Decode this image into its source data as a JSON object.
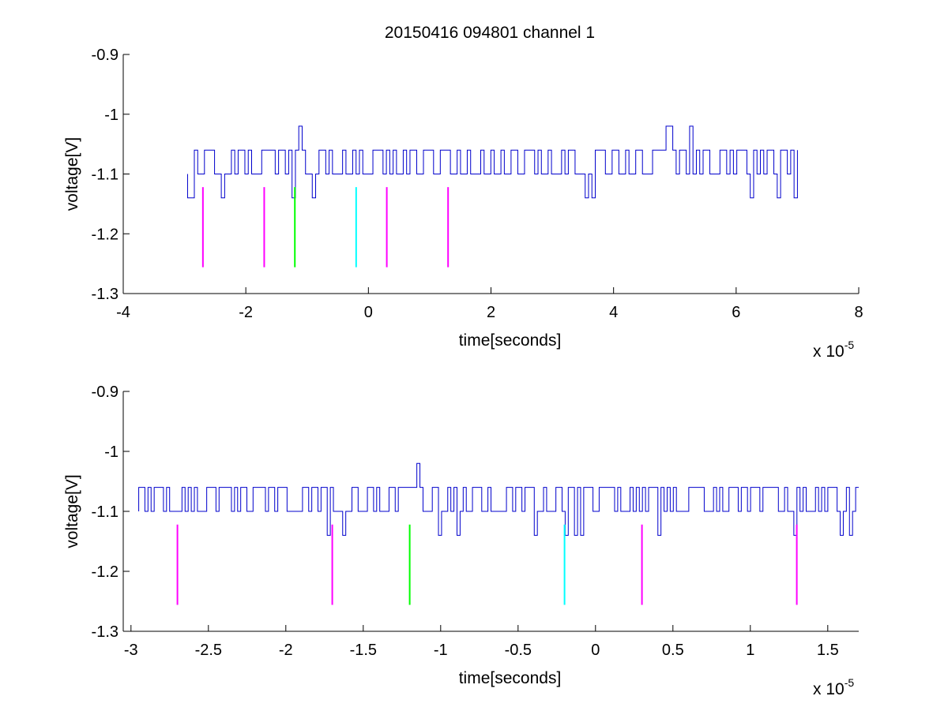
{
  "figure": {
    "title": "20150416 094801 channel 1"
  },
  "chart_data": [
    {
      "type": "line",
      "title": "20150416 094801 channel 1",
      "xlabel": "time[seconds]",
      "ylabel": "voltage[V]",
      "x_multiplier_label": "x 10",
      "x_multiplier_exponent": "-5",
      "x_scale": 1e-05,
      "xlim": [
        -4,
        8
      ],
      "ylim": [
        -1.3,
        -0.9
      ],
      "xticks": [
        -4,
        -2,
        0,
        2,
        4,
        6,
        8
      ],
      "xtick_labels": [
        "-4",
        "-2",
        "0",
        "2",
        "4",
        "6",
        "8"
      ],
      "yticks": [
        -1.3,
        -1.2,
        -1.1,
        -1.0,
        -0.9
      ],
      "ytick_labels": [
        "-1.3",
        "-1.2",
        "-1.1",
        "-1",
        "-0.9"
      ],
      "grid": false,
      "signal": {
        "color": "#0000cc",
        "x_range": [
          -2.95,
          7.0
        ],
        "levels": [
          -1.06,
          -1.1,
          -1.14
        ],
        "spikes": [
          {
            "x": -1.15,
            "y": -1.02
          },
          {
            "x": 4.88,
            "y": -1.02
          },
          {
            "x": 5.25,
            "y": -1.02
          }
        ]
      },
      "markers": [
        {
          "x": -2.7,
          "color": "#ff00ff",
          "y_top": -1.122,
          "y_bottom": -1.256
        },
        {
          "x": -1.7,
          "color": "#ff00ff",
          "y_top": -1.122,
          "y_bottom": -1.256
        },
        {
          "x": -1.2,
          "color": "#00ff00",
          "y_top": -1.122,
          "y_bottom": -1.256
        },
        {
          "x": -0.2,
          "color": "#00ffff",
          "y_top": -1.122,
          "y_bottom": -1.256
        },
        {
          "x": 0.3,
          "color": "#ff00ff",
          "y_top": -1.122,
          "y_bottom": -1.256
        },
        {
          "x": 1.3,
          "color": "#ff00ff",
          "y_top": -1.122,
          "y_bottom": -1.256
        }
      ]
    },
    {
      "type": "line",
      "xlabel": "time[seconds]",
      "ylabel": "voltage[V]",
      "x_multiplier_label": "x 10",
      "x_multiplier_exponent": "-5",
      "x_scale": 1e-05,
      "xlim": [
        -3.05,
        1.7
      ],
      "ylim": [
        -1.3,
        -0.9
      ],
      "xticks": [
        -3,
        -2.5,
        -2,
        -1.5,
        -1,
        -0.5,
        0,
        0.5,
        1,
        1.5
      ],
      "xtick_labels": [
        "-3",
        "-2.5",
        "-2",
        "-1.5",
        "-1",
        "-0.5",
        "0",
        "0.5",
        "1",
        "1.5"
      ],
      "yticks": [
        -1.3,
        -1.2,
        -1.1,
        -1.0,
        -0.9
      ],
      "ytick_labels": [
        "-1.3",
        "-1.2",
        "-1.1",
        "-1",
        "-0.9"
      ],
      "grid": false,
      "signal": {
        "color": "#0000cc",
        "x_range": [
          -2.95,
          1.7
        ],
        "levels": [
          -1.06,
          -1.1,
          -1.14
        ],
        "spikes": [
          {
            "x": -1.15,
            "y": -1.02
          }
        ]
      },
      "markers": [
        {
          "x": -2.7,
          "color": "#ff00ff",
          "y_top": -1.122,
          "y_bottom": -1.256
        },
        {
          "x": -1.7,
          "color": "#ff00ff",
          "y_top": -1.122,
          "y_bottom": -1.256
        },
        {
          "x": -1.2,
          "color": "#00ff00",
          "y_top": -1.122,
          "y_bottom": -1.256
        },
        {
          "x": -0.2,
          "color": "#00ffff",
          "y_top": -1.122,
          "y_bottom": -1.256
        },
        {
          "x": 0.3,
          "color": "#ff00ff",
          "y_top": -1.122,
          "y_bottom": -1.256
        },
        {
          "x": 1.3,
          "color": "#ff00ff",
          "y_top": -1.122,
          "y_bottom": -1.256
        }
      ]
    }
  ]
}
